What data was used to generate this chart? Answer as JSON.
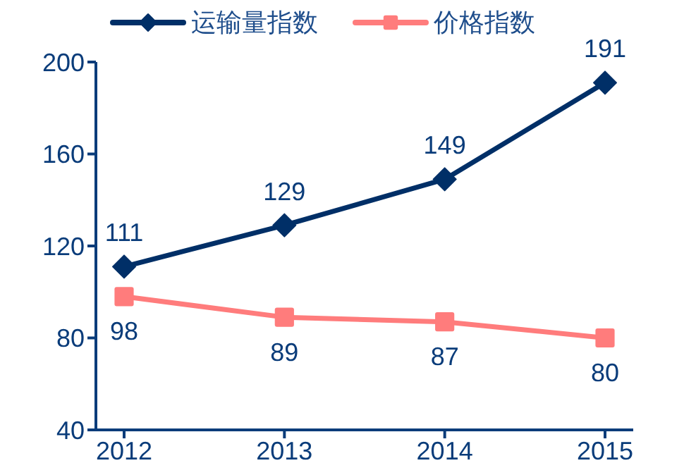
{
  "chart_data": {
    "type": "line",
    "categories": [
      "2012",
      "2013",
      "2014",
      "2015"
    ],
    "series": [
      {
        "name": "运输量指数",
        "color": "#002f67",
        "marker": "diamond",
        "values": [
          111,
          129,
          149,
          191
        ]
      },
      {
        "name": "价格指数",
        "color": "#ff7c7c",
        "marker": "square",
        "values": [
          98,
          89,
          87,
          80
        ]
      }
    ],
    "ylim": [
      40,
      200
    ],
    "yticks": [
      40,
      80,
      120,
      160,
      200
    ],
    "grid": false,
    "legend": "top",
    "data_labels": true
  }
}
